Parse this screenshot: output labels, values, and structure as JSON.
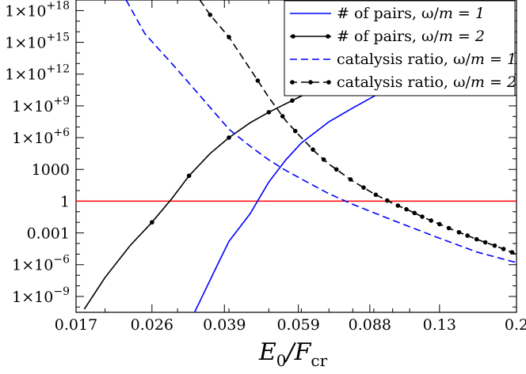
{
  "chart_data": {
    "type": "line",
    "xlabel": "E0/Fcr",
    "xlabel_parts": {
      "main": "E",
      "sub": "0",
      "slash": "/F",
      "sub2": "cr"
    },
    "x_scale": "log",
    "y_scale": "log",
    "xlim": [
      0.017,
      0.2
    ],
    "ylim_log10": [
      -10.5,
      19
    ],
    "grid": false,
    "legend_placement": "top-right",
    "x_tick_labels": [
      "0.017",
      "0.026",
      "0.039",
      "0.059",
      "0.088",
      "0.13",
      "0.2"
    ],
    "x_ticks": [
      0.017,
      0.026,
      0.039,
      0.059,
      0.088,
      0.13,
      0.2
    ],
    "y_ticks_log10": [
      18,
      15,
      12,
      9,
      6,
      3,
      0,
      -3,
      -6,
      -9
    ],
    "y_tick_labels": [
      {
        "mant": "1×10",
        "exp": "+18"
      },
      {
        "mant": "1×10",
        "exp": "+15"
      },
      {
        "mant": "1×10",
        "exp": "+12"
      },
      {
        "mant": "1×10",
        "exp": "+9"
      },
      {
        "mant": "1×10",
        "exp": "+6"
      },
      {
        "mant": "1000",
        "exp": ""
      },
      {
        "mant": "1",
        "exp": ""
      },
      {
        "mant": "0.001",
        "exp": ""
      },
      {
        "mant": "1×10",
        "exp": "−6"
      },
      {
        "mant": "1×10",
        "exp": "−9"
      }
    ],
    "reference_line": {
      "y": 1,
      "color": "#ff0000"
    },
    "series": [
      {
        "name": "# of pairs, ω/m = 1",
        "name_parts": [
          "# of pairs, ",
          "ω/",
          "m",
          " = ",
          "1"
        ],
        "color": "#0000ff",
        "dash": "solid",
        "markers": false,
        "points_log10": [
          [
            0.033,
            -10.5
          ],
          [
            0.037,
            -6.5
          ],
          [
            0.04,
            -3.8
          ],
          [
            0.045,
            -1.2
          ],
          [
            0.05,
            1.8
          ],
          [
            0.055,
            3.9
          ],
          [
            0.06,
            5.5
          ],
          [
            0.07,
            7.5
          ],
          [
            0.08,
            8.8
          ],
          [
            0.09,
            9.9
          ],
          [
            0.1,
            10.8
          ],
          [
            0.11,
            11.6
          ],
          [
            0.118,
            12.2
          ]
        ]
      },
      {
        "name": "# of pairs, ω/m = 2",
        "name_parts": [
          "# of pairs, ",
          "ω/",
          "m",
          " = ",
          "2"
        ],
        "color": "#000000",
        "dash": "solid",
        "markers": true,
        "points_log10": [
          [
            0.0178,
            -10.2
          ],
          [
            0.02,
            -7.2
          ],
          [
            0.023,
            -4.2
          ],
          [
            0.026,
            -2.0
          ],
          [
            0.029,
            0.2
          ],
          [
            0.032,
            2.4
          ],
          [
            0.036,
            4.5
          ],
          [
            0.04,
            6.0
          ],
          [
            0.045,
            7.4
          ],
          [
            0.05,
            8.4
          ],
          [
            0.055,
            9.2
          ],
          [
            0.062,
            10.2
          ],
          [
            0.07,
            10.9
          ],
          [
            0.078,
            11.4
          ]
        ],
        "marker_x": [
          0.026,
          0.032,
          0.04,
          0.05,
          0.057,
          0.065,
          0.076
        ]
      },
      {
        "name": "catalysis ratio, ω/m = 1",
        "name_parts": [
          "catalysis ratio, ",
          "ω/",
          "m",
          " = ",
          "1"
        ],
        "color": "#0000ff",
        "dash": "dashed",
        "markers": false,
        "points_log10": [
          [
            0.0225,
            19.0
          ],
          [
            0.025,
            15.8
          ],
          [
            0.03,
            12.4
          ],
          [
            0.035,
            9.4
          ],
          [
            0.04,
            6.8
          ],
          [
            0.045,
            5.2
          ],
          [
            0.05,
            3.9
          ],
          [
            0.055,
            2.9
          ],
          [
            0.06,
            2.1
          ],
          [
            0.07,
            0.7
          ],
          [
            0.08,
            -0.3
          ],
          [
            0.1,
            -1.8
          ],
          [
            0.13,
            -3.5
          ],
          [
            0.16,
            -4.8
          ],
          [
            0.2,
            -5.8
          ]
        ]
      },
      {
        "name": "catalysis ratio, ω/m = 2",
        "name_parts": [
          "catalysis ratio, ",
          "ω/",
          "m",
          " = ",
          "2"
        ],
        "color": "#000000",
        "dash": "dashed",
        "markers": true,
        "points_log10": [
          [
            0.034,
            19.0
          ],
          [
            0.036,
            17.6
          ],
          [
            0.04,
            15.5
          ],
          [
            0.045,
            12.5
          ],
          [
            0.05,
            9.8
          ],
          [
            0.055,
            7.6
          ],
          [
            0.06,
            6.0
          ],
          [
            0.065,
            4.6
          ],
          [
            0.07,
            3.5
          ],
          [
            0.08,
            1.9
          ],
          [
            0.09,
            0.7
          ],
          [
            0.1,
            -0.2
          ],
          [
            0.11,
            -0.9
          ],
          [
            0.12,
            -1.6
          ],
          [
            0.14,
            -2.7
          ],
          [
            0.16,
            -3.6
          ],
          [
            0.18,
            -4.3
          ],
          [
            0.2,
            -5.0
          ]
        ],
        "marker_x": [
          0.036,
          0.04,
          0.047,
          0.054,
          0.058,
          0.064,
          0.068,
          0.073,
          0.079,
          0.085,
          0.091,
          0.097,
          0.103,
          0.108,
          0.113,
          0.118,
          0.124,
          0.13,
          0.137,
          0.145,
          0.152,
          0.16,
          0.168,
          0.177,
          0.186,
          0.195
        ]
      }
    ]
  }
}
